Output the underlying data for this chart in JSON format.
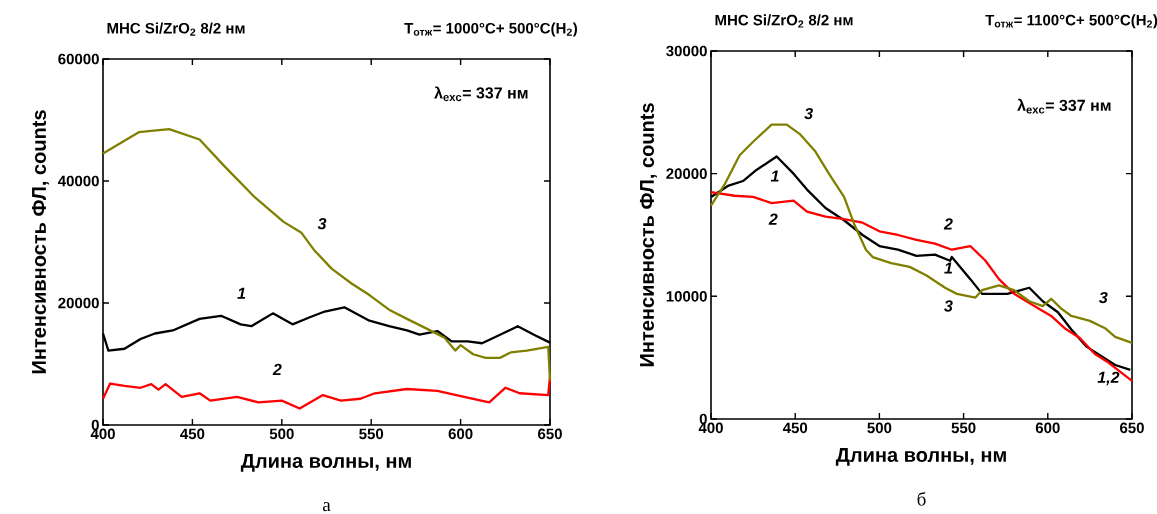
{
  "chart_data": [
    {
      "type": "line",
      "title": "МНС Si/ZrO$_{2}$ 8/2 нм",
      "subtitle": "T$_{отж}$= 1000°C+ 500°C(H$_{2}$)",
      "xlabel": "Длина волны, нм",
      "ylabel": "Интенсивность ФЛ, counts",
      "xlim": [
        400,
        650
      ],
      "ylim": [
        0,
        60000
      ],
      "xticks": [
        400,
        450,
        500,
        550,
        600,
        650
      ],
      "yticks": [
        0,
        20000,
        40000,
        60000
      ],
      "series": [
        {
          "color": "#000000",
          "x": [
            400,
            403,
            412,
            421,
            429,
            439,
            454,
            466,
            477,
            483,
            495,
            506,
            516,
            524,
            535,
            549,
            560,
            570,
            577,
            587,
            595,
            604,
            612,
            620,
            632,
            641,
            650
          ],
          "values": [
            15000,
            12200,
            12500,
            14100,
            15000,
            15500,
            17400,
            17900,
            16500,
            16200,
            18300,
            16500,
            17700,
            18600,
            19300,
            17100,
            16200,
            15500,
            14800,
            15400,
            13700,
            13700,
            13400,
            14500,
            16200,
            14800,
            13500
          ]
        },
        {
          "color": "#ff0000",
          "x": [
            400,
            404,
            412,
            421,
            427,
            431,
            435,
            444,
            454,
            460,
            475,
            487,
            500,
            510,
            523,
            533,
            544,
            552,
            570,
            587,
            602,
            616,
            625,
            633,
            649,
            650
          ],
          "values": [
            4300,
            6800,
            6400,
            6100,
            6700,
            5800,
            6700,
            4600,
            5200,
            4000,
            4600,
            3700,
            4000,
            2700,
            4900,
            4000,
            4300,
            5200,
            5900,
            5600,
            4600,
            3700,
            6100,
            5200,
            4900,
            7900
          ]
        },
        {
          "color": "#808000",
          "x": [
            400,
            420,
            437,
            454,
            468,
            485,
            501,
            511,
            518,
            528,
            539,
            549,
            560,
            570,
            581,
            591,
            597,
            600,
            607,
            614,
            622,
            628,
            637,
            649,
            650
          ],
          "values": [
            44500,
            48000,
            48500,
            46800,
            42400,
            37300,
            33300,
            31500,
            28700,
            25600,
            23200,
            21300,
            18900,
            17400,
            15800,
            14300,
            12200,
            13100,
            11600,
            11000,
            11000,
            11900,
            12200,
            12800,
            7300
          ]
        }
      ],
      "annotations": [
        "λ$_{exc}$= 337 нм",
        "а",
        "3",
        "1",
        "2"
      ]
    },
    {
      "type": "line",
      "title": "МНС Si/ZrO$_{2}$ 8/2 нм",
      "subtitle": "T$_{отж}$= 1100°C+ 500°C(H$_{2}$)",
      "xlabel": "Длина волны, нм",
      "ylabel": "Интенсивность ФЛ, counts",
      "xlim": [
        400,
        650
      ],
      "ylim": [
        0,
        30000
      ],
      "xticks": [
        400,
        450,
        500,
        550,
        600,
        650
      ],
      "yticks": [
        0,
        10000,
        20000,
        30000
      ],
      "series": [
        {
          "color": "#000000",
          "x": [
            400,
            410,
            419,
            427,
            439,
            449,
            457,
            468,
            479,
            490,
            500,
            511,
            522,
            533,
            542,
            543,
            554,
            561,
            576,
            589,
            597,
            606,
            614,
            623,
            632,
            640,
            649
          ],
          "values": [
            18100,
            19000,
            19400,
            20300,
            21400,
            20000,
            18700,
            17200,
            16200,
            15000,
            14100,
            13800,
            13300,
            13400,
            12900,
            13200,
            11400,
            10200,
            10200,
            10700,
            9600,
            8700,
            7300,
            5900,
            null,
            4400,
            4000
          ]
        },
        {
          "color": "#ff0000",
          "x": [
            400,
            414,
            425,
            436,
            449,
            457,
            468,
            479,
            490,
            500,
            511,
            522,
            533,
            543,
            554,
            563,
            571,
            580,
            591,
            602,
            610,
            619,
            628,
            636,
            650
          ],
          "values": [
            18500,
            18200,
            18100,
            17600,
            17800,
            16900,
            16500,
            16300,
            16000,
            15300,
            15000,
            14600,
            14300,
            13800,
            14100,
            12900,
            11400,
            10200,
            9300,
            8400,
            7400,
            6600,
            5300,
            4600,
            3100
          ]
        },
        {
          "color": "#808000",
          "x": [
            400,
            408,
            417,
            425,
            436,
            445,
            453,
            462,
            470,
            479,
            485,
            492,
            496,
            507,
            518,
            528,
            539,
            546,
            557,
            561,
            571,
            580,
            589,
            597,
            602,
            608,
            614,
            625,
            634,
            640,
            650
          ],
          "values": [
            17400,
            19100,
            21500,
            22600,
            24000,
            24000,
            23200,
            21800,
            20000,
            18100,
            15900,
            13800,
            13200,
            12700,
            12400,
            11700,
            10700,
            10200,
            9900,
            10500,
            10900,
            10500,
            9600,
            9200,
            9800,
            9000,
            8400,
            8000,
            7400,
            6700,
            6200
          ]
        }
      ],
      "annotations": [
        "λ$_{exc}$= 337 нм",
        "б",
        "3",
        "1",
        "2",
        "2",
        "1",
        "3",
        "3",
        "1,2"
      ]
    }
  ]
}
